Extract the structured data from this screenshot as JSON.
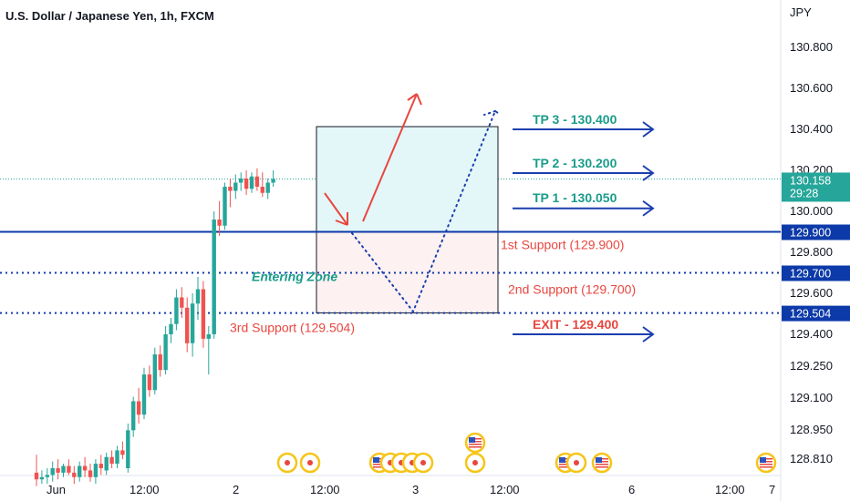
{
  "header": {
    "title": "U.S. Dollar / Japanese Yen, 1h, FXCM",
    "currency": "JPY"
  },
  "price_badge": {
    "value": "130.158",
    "countdown": "29:28",
    "color": "#26a69a"
  },
  "colors": {
    "up": "#26a69a",
    "down": "#ef5350",
    "level_line": "#0d3aa9",
    "arrow_blue": "#1b3fae",
    "red": "#e8473f",
    "teal": "#1a9c8a",
    "target_fill": "#e3f6f8",
    "stop_fill": "#fdf1f1"
  },
  "annotations": {
    "tp3": "TP 3 - 130.400",
    "tp2": "TP 2 - 130.200",
    "tp1": "TP 1 - 130.050",
    "support1": "1st Support (129.900)",
    "support2": "2nd Support (129.700)",
    "support3": "3rd Support (129.504)",
    "exit": "EXIT - 129.400",
    "entering_zone": "Entering Zone"
  },
  "level_badges": [
    "129.900",
    "129.700",
    "129.504"
  ],
  "chart_data": {
    "type": "candlestick",
    "title": "U.S. Dollar / Japanese Yen, 1h, FXCM",
    "ylabel": "JPY",
    "ylim": [
      128.72,
      130.92
    ],
    "y_ticks": [
      "130.800",
      "130.600",
      "130.400",
      "130.200",
      "130.000",
      "129.800",
      "129.600",
      "129.400",
      "129.250",
      "129.100",
      "128.950",
      "128.810"
    ],
    "x_ticks": [
      "Jun",
      "12:00",
      "2",
      "12:00",
      "3",
      "12:00",
      "6",
      "12:00",
      "7"
    ],
    "current_price": 130.158,
    "levels": [
      129.9,
      129.7,
      129.504
    ],
    "targets": [
      130.4,
      130.2,
      130.05
    ],
    "exit": 129.4,
    "candles": [
      {
        "o": 128.78,
        "h": 128.86,
        "l": 128.72,
        "c": 128.75
      },
      {
        "o": 128.75,
        "h": 128.79,
        "l": 128.73,
        "c": 128.76
      },
      {
        "o": 128.76,
        "h": 128.8,
        "l": 128.73,
        "c": 128.77
      },
      {
        "o": 128.77,
        "h": 128.83,
        "l": 128.74,
        "c": 128.8
      },
      {
        "o": 128.8,
        "h": 128.84,
        "l": 128.75,
        "c": 128.78
      },
      {
        "o": 128.78,
        "h": 128.82,
        "l": 128.76,
        "c": 128.81
      },
      {
        "o": 128.81,
        "h": 128.84,
        "l": 128.77,
        "c": 128.78
      },
      {
        "o": 128.78,
        "h": 128.81,
        "l": 128.73,
        "c": 128.76
      },
      {
        "o": 128.76,
        "h": 128.83,
        "l": 128.74,
        "c": 128.81
      },
      {
        "o": 128.81,
        "h": 128.85,
        "l": 128.76,
        "c": 128.79
      },
      {
        "o": 128.79,
        "h": 128.82,
        "l": 128.74,
        "c": 128.76
      },
      {
        "o": 128.76,
        "h": 128.84,
        "l": 128.73,
        "c": 128.82
      },
      {
        "o": 128.82,
        "h": 128.86,
        "l": 128.77,
        "c": 128.8
      },
      {
        "o": 128.79,
        "h": 128.87,
        "l": 128.77,
        "c": 128.85
      },
      {
        "o": 128.85,
        "h": 128.88,
        "l": 128.8,
        "c": 128.82
      },
      {
        "o": 128.82,
        "h": 128.9,
        "l": 128.8,
        "c": 128.88
      },
      {
        "o": 128.88,
        "h": 128.92,
        "l": 128.84,
        "c": 128.86
      },
      {
        "o": 128.8,
        "h": 129.0,
        "l": 128.78,
        "c": 128.97
      },
      {
        "o": 128.97,
        "h": 129.12,
        "l": 128.94,
        "c": 129.1
      },
      {
        "o": 129.1,
        "h": 129.16,
        "l": 129.0,
        "c": 129.04
      },
      {
        "o": 129.04,
        "h": 129.25,
        "l": 129.02,
        "c": 129.22
      },
      {
        "o": 129.22,
        "h": 129.26,
        "l": 129.12,
        "c": 129.15
      },
      {
        "o": 129.15,
        "h": 129.34,
        "l": 129.13,
        "c": 129.31
      },
      {
        "o": 129.31,
        "h": 129.35,
        "l": 129.21,
        "c": 129.24
      },
      {
        "o": 129.24,
        "h": 129.44,
        "l": 129.22,
        "c": 129.4
      },
      {
        "o": 129.4,
        "h": 129.48,
        "l": 129.36,
        "c": 129.45
      },
      {
        "o": 129.45,
        "h": 129.62,
        "l": 129.42,
        "c": 129.58
      },
      {
        "o": 129.58,
        "h": 129.63,
        "l": 129.48,
        "c": 129.53
      },
      {
        "o": 129.53,
        "h": 129.58,
        "l": 129.32,
        "c": 129.36
      },
      {
        "o": 129.36,
        "h": 129.6,
        "l": 129.3,
        "c": 129.55
      },
      {
        "o": 129.55,
        "h": 129.68,
        "l": 129.47,
        "c": 129.62
      },
      {
        "o": 129.62,
        "h": 129.66,
        "l": 129.34,
        "c": 129.38
      },
      {
        "o": 129.38,
        "h": 129.44,
        "l": 129.22,
        "c": 129.4
      },
      {
        "o": 129.4,
        "h": 130.0,
        "l": 129.38,
        "c": 129.96
      },
      {
        "o": 129.96,
        "h": 130.05,
        "l": 129.88,
        "c": 129.93
      },
      {
        "o": 129.93,
        "h": 130.14,
        "l": 129.91,
        "c": 130.12
      },
      {
        "o": 130.12,
        "h": 130.16,
        "l": 130.02,
        "c": 130.1
      },
      {
        "o": 130.1,
        "h": 130.18,
        "l": 130.06,
        "c": 130.14
      },
      {
        "o": 130.14,
        "h": 130.19,
        "l": 130.1,
        "c": 130.16
      },
      {
        "o": 130.16,
        "h": 130.2,
        "l": 130.08,
        "c": 130.11
      },
      {
        "o": 130.11,
        "h": 130.19,
        "l": 130.09,
        "c": 130.17
      },
      {
        "o": 130.17,
        "h": 130.21,
        "l": 130.1,
        "c": 130.12
      },
      {
        "o": 130.12,
        "h": 130.19,
        "l": 130.07,
        "c": 130.09
      },
      {
        "o": 130.09,
        "h": 130.16,
        "l": 130.06,
        "c": 130.14
      },
      {
        "o": 130.14,
        "h": 130.2,
        "l": 130.12,
        "c": 130.158
      }
    ],
    "events": [
      {
        "type": "red-dot",
        "slot": 0
      },
      {
        "type": "red-dot",
        "slot": 1
      },
      {
        "type": "us-flag",
        "slot": 2
      },
      {
        "type": "red-dot",
        "slot": 3
      },
      {
        "type": "red-dot",
        "slot": 4
      },
      {
        "type": "red-dot",
        "slot": 5
      },
      {
        "type": "red-dot",
        "slot": 6
      },
      {
        "type": "us-flag",
        "slot": 7
      },
      {
        "type": "red-dot",
        "slot": 8
      },
      {
        "type": "us-flag",
        "slot": 9
      },
      {
        "type": "red-dot",
        "slot": 10
      },
      {
        "type": "us-flag",
        "slot": 11
      },
      {
        "type": "us-flag",
        "slot": 12
      }
    ]
  }
}
